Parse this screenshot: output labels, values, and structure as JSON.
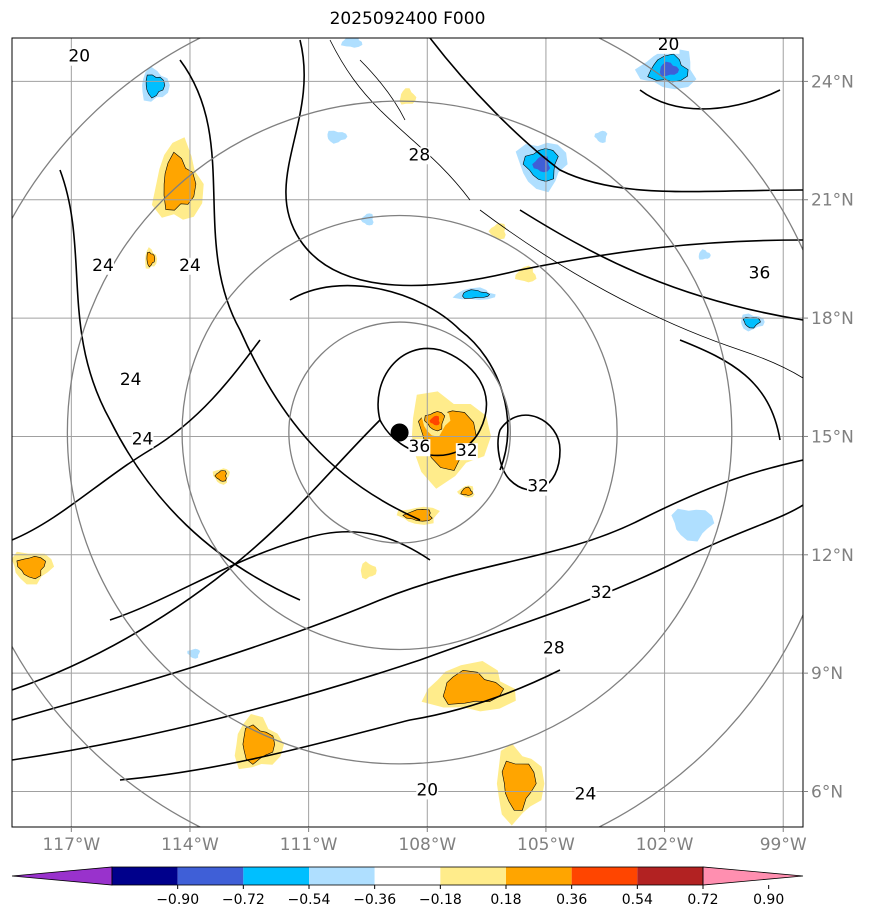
{
  "title": "2025092400 F000",
  "map": {
    "lon_range": [
      -118.5,
      -98.5
    ],
    "lat_range": [
      5.1,
      25.1
    ],
    "lon_ticks": [
      {
        "value": -117,
        "label": "117°W"
      },
      {
        "value": -114,
        "label": "114°W"
      },
      {
        "value": -111,
        "label": "111°W"
      },
      {
        "value": -108,
        "label": "108°W"
      },
      {
        "value": -105,
        "label": "105°W"
      },
      {
        "value": -102,
        "label": "102°W"
      },
      {
        "value": -99,
        "label": "99°W"
      }
    ],
    "lat_ticks": [
      {
        "value": 6,
        "label": "6°N"
      },
      {
        "value": 9,
        "label": "9°N"
      },
      {
        "value": 12,
        "label": "12°N"
      },
      {
        "value": 15,
        "label": "15°N"
      },
      {
        "value": 18,
        "label": "18°N"
      },
      {
        "value": 21,
        "label": "21°N"
      },
      {
        "value": 24,
        "label": "24°N"
      }
    ],
    "storm_center": {
      "lon": -108.7,
      "lat": 15.1
    },
    "range_rings_deg": [
      2.8,
      5.5,
      8.4,
      11.2
    ],
    "contour_labels": [
      {
        "text": "20",
        "lon": -116.8,
        "lat": 24.5
      },
      {
        "text": "20",
        "lon": -101.9,
        "lat": 24.8
      },
      {
        "text": "28",
        "lon": -108.2,
        "lat": 22.0
      },
      {
        "text": "24",
        "lon": -116.2,
        "lat": 19.2
      },
      {
        "text": "24",
        "lon": -114.0,
        "lat": 19.2
      },
      {
        "text": "24",
        "lon": -115.5,
        "lat": 16.3
      },
      {
        "text": "24",
        "lon": -115.2,
        "lat": 14.8
      },
      {
        "text": "36",
        "lon": -99.6,
        "lat": 19.0
      },
      {
        "text": "36",
        "lon": -108.2,
        "lat": 14.6
      },
      {
        "text": "32",
        "lon": -107.0,
        "lat": 14.5
      },
      {
        "text": "32",
        "lon": -105.2,
        "lat": 13.6
      },
      {
        "text": "32",
        "lon": -103.6,
        "lat": 10.9
      },
      {
        "text": "28",
        "lon": -104.8,
        "lat": 9.5
      },
      {
        "text": "20",
        "lon": -108.0,
        "lat": 5.9
      },
      {
        "text": "24",
        "lon": -104.0,
        "lat": 5.8
      }
    ],
    "positive_blobs": [
      {
        "lon": -114.3,
        "lat": 21.4,
        "rx": 0.6,
        "ry": 1.0,
        "level": 0.36
      },
      {
        "lon": -115.0,
        "lat": 19.5,
        "rx": 0.15,
        "ry": 0.25,
        "level": 0.36
      },
      {
        "lon": -107.5,
        "lat": 15.0,
        "rx": 1.0,
        "ry": 1.1,
        "level": 0.36
      },
      {
        "lon": -107.8,
        "lat": 15.4,
        "rx": 0.35,
        "ry": 0.35,
        "level": 0.54
      },
      {
        "lon": -108.2,
        "lat": 13.0,
        "rx": 0.5,
        "ry": 0.22,
        "level": 0.36
      },
      {
        "lon": -107.0,
        "lat": 13.6,
        "rx": 0.2,
        "ry": 0.15,
        "level": 0.36
      },
      {
        "lon": -106.9,
        "lat": 8.6,
        "rx": 1.1,
        "ry": 0.6,
        "level": 0.36
      },
      {
        "lon": -112.3,
        "lat": 7.2,
        "rx": 0.6,
        "ry": 0.65,
        "level": 0.36
      },
      {
        "lon": -105.7,
        "lat": 6.2,
        "rx": 0.6,
        "ry": 0.9,
        "level": 0.36
      },
      {
        "lon": -118.0,
        "lat": 11.7,
        "rx": 0.5,
        "ry": 0.4,
        "level": 0.36
      },
      {
        "lon": -113.2,
        "lat": 14.0,
        "rx": 0.2,
        "ry": 0.2,
        "level": 0.36
      },
      {
        "lon": -106.2,
        "lat": 20.2,
        "rx": 0.2,
        "ry": 0.2,
        "level": 0.18
      },
      {
        "lon": -105.5,
        "lat": 19.1,
        "rx": 0.25,
        "ry": 0.2,
        "level": 0.18
      },
      {
        "lon": -108.5,
        "lat": 23.6,
        "rx": 0.2,
        "ry": 0.2,
        "level": 0.18
      },
      {
        "lon": -109.5,
        "lat": 11.6,
        "rx": 0.2,
        "ry": 0.2,
        "level": 0.18
      }
    ],
    "negative_blobs": [
      {
        "lon": -114.9,
        "lat": 23.9,
        "rx": 0.35,
        "ry": 0.4,
        "level": -0.36
      },
      {
        "lon": -110.3,
        "lat": 22.6,
        "rx": 0.25,
        "ry": 0.15,
        "level": -0.18
      },
      {
        "lon": -105.1,
        "lat": 21.9,
        "rx": 0.6,
        "ry": 0.6,
        "level": -0.54
      },
      {
        "lon": -103.6,
        "lat": 22.6,
        "rx": 0.15,
        "ry": 0.15,
        "level": -0.18
      },
      {
        "lon": -101.9,
        "lat": 24.3,
        "rx": 0.7,
        "ry": 0.5,
        "level": -0.54
      },
      {
        "lon": -106.8,
        "lat": 18.6,
        "rx": 0.5,
        "ry": 0.15,
        "level": -0.36
      },
      {
        "lon": -101.0,
        "lat": 19.6,
        "rx": 0.15,
        "ry": 0.12,
        "level": -0.18
      },
      {
        "lon": -99.8,
        "lat": 17.9,
        "rx": 0.3,
        "ry": 0.2,
        "level": -0.36
      },
      {
        "lon": -101.3,
        "lat": 12.8,
        "rx": 0.5,
        "ry": 0.4,
        "level": -0.18
      },
      {
        "lon": -113.9,
        "lat": 9.5,
        "rx": 0.15,
        "ry": 0.12,
        "level": -0.18
      },
      {
        "lon": -109.5,
        "lat": 20.5,
        "rx": 0.15,
        "ry": 0.15,
        "level": -0.18
      },
      {
        "lon": -109.9,
        "lat": 25.0,
        "rx": 0.25,
        "ry": 0.15,
        "level": -0.18
      }
    ]
  },
  "colorbar": {
    "colors": [
      "#9932cc",
      "#00008b",
      "#3f5fd7",
      "#00bfff",
      "#afdfff",
      "#ffffff",
      "#ffec8b",
      "#ffa500",
      "#ff4500",
      "#b22222",
      "#ff8fb0"
    ],
    "tick_labels": [
      "−0.90",
      "−0.72",
      "−0.54",
      "−0.36",
      "−0.18",
      "0.18",
      "0.36",
      "0.54",
      "0.72",
      "0.90"
    ]
  }
}
